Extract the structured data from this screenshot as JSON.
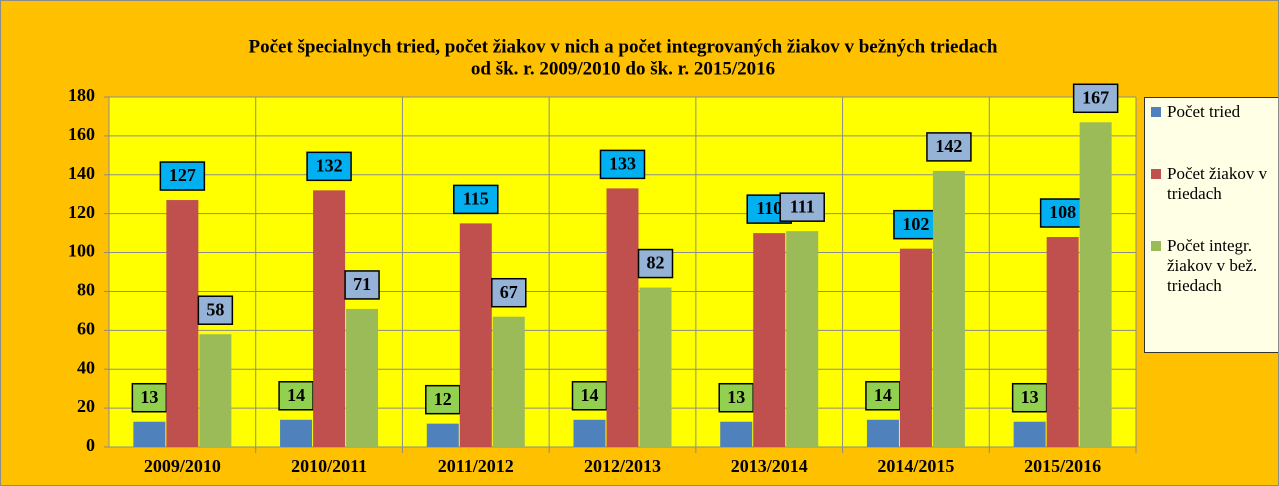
{
  "chart_data": {
    "type": "bar",
    "title": "Počet špecialnych tried, počet žiakov v nich a počet integrovaných žiakov v bežných triedach",
    "subtitle": "od šk. r. 2009/2010 do šk. r. 2015/2016",
    "categories": [
      "2009/2010",
      "2010/2011",
      "2011/2012",
      "2012/2013",
      "2013/2014",
      "2014/2015",
      "2015/2016"
    ],
    "series": [
      {
        "name": "Počet tried",
        "color": "#4f81bd",
        "label_color": "#92d050",
        "values": [
          13,
          14,
          12,
          14,
          13,
          14,
          13
        ]
      },
      {
        "name": "Počet žiakov v triedach",
        "color": "#c0504d",
        "label_color": "#00b0f0",
        "values": [
          127,
          132,
          115,
          133,
          110,
          102,
          108
        ]
      },
      {
        "name": "Počet integr. žiakov v bež. triedach",
        "color": "#9bbb59",
        "label_color": "#95b3d7",
        "values": [
          58,
          71,
          67,
          82,
          111,
          142,
          167
        ]
      }
    ],
    "ylim": [
      0,
      180
    ],
    "yticks": [
      0,
      20,
      40,
      60,
      80,
      100,
      120,
      140,
      160,
      180
    ],
    "grid": true,
    "legend": "right"
  }
}
